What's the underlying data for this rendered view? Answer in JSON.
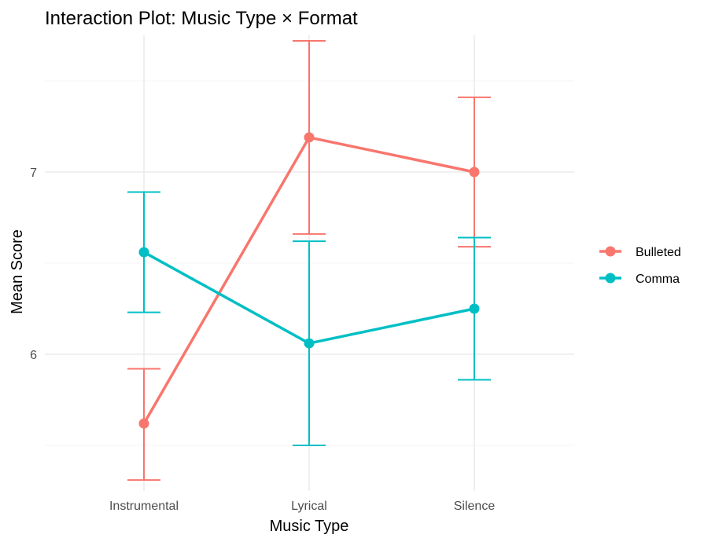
{
  "chart_data": {
    "type": "line",
    "title": "Interaction Plot: Music Type × Format",
    "xlabel": "Music Type",
    "ylabel": "Mean Score",
    "categories": [
      "Instrumental",
      "Lyrical",
      "Silence"
    ],
    "ylim": [
      5.25,
      7.75
    ],
    "yticks": [
      6,
      7
    ],
    "grid": true,
    "legend_position": "right",
    "series": [
      {
        "name": "Bulleted",
        "color": "#F8766D",
        "values": [
          5.62,
          7.19,
          7.0
        ],
        "error_low": [
          5.31,
          6.66,
          6.59
        ],
        "error_high": [
          5.92,
          7.72,
          7.41
        ]
      },
      {
        "name": "Comma",
        "color": "#00BFC4",
        "values": [
          6.56,
          6.06,
          6.25
        ],
        "error_low": [
          6.23,
          5.5,
          5.86
        ],
        "error_high": [
          6.89,
          6.62,
          6.64
        ]
      }
    ]
  }
}
